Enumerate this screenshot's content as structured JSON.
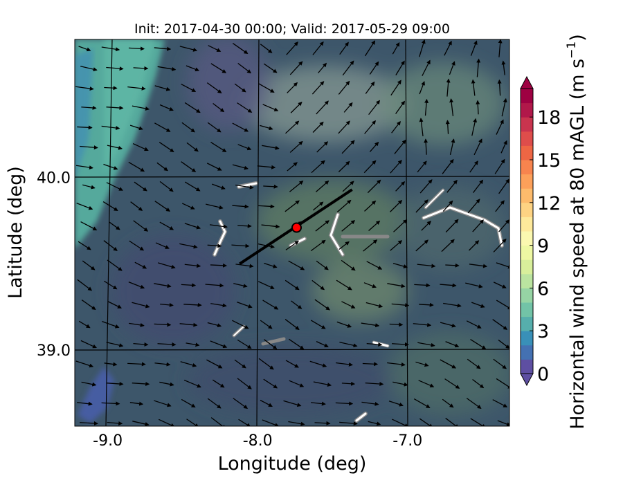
{
  "title": "Init: 2017-04-30 00:00; Valid: 2017-05-29 09:00",
  "xaxis": {
    "label": "Longitude (deg)",
    "ticks": [
      {
        "value": -9.0,
        "label": "-9.0"
      },
      {
        "value": -8.0,
        "label": "-8.0"
      },
      {
        "value": -7.0,
        "label": "-7.0"
      }
    ],
    "range": [
      -9.22,
      -6.32
    ]
  },
  "yaxis": {
    "label": "Latitude (deg)",
    "ticks": [
      {
        "value": 40.0,
        "label": "40.0"
      },
      {
        "value": 39.0,
        "label": "39.0"
      }
    ],
    "range": [
      38.56,
      40.8
    ]
  },
  "grid": true,
  "marker": {
    "lon": -7.74,
    "lat": 39.71,
    "color": "#ff0000"
  },
  "transect": {
    "start": [
      -8.12,
      39.5
    ],
    "end": [
      -7.37,
      39.93
    ]
  },
  "colorbar": {
    "label_main": "Horizontal wind speed at 80 mAGL (m s",
    "label_sup": "−1",
    "label_close": ")",
    "min": 0,
    "max": 20,
    "step": 1,
    "extend": "both",
    "ticks": [
      {
        "value": 0,
        "label": "0"
      },
      {
        "value": 3,
        "label": "3"
      },
      {
        "value": 6,
        "label": "6"
      },
      {
        "value": 9,
        "label": "9"
      },
      {
        "value": 12,
        "label": "12"
      },
      {
        "value": 15,
        "label": "15"
      },
      {
        "value": 18,
        "label": "18"
      }
    ],
    "colors": [
      "#5e4fa2",
      "#4471b2",
      "#3990b8",
      "#56aeac",
      "#72c3a7",
      "#96d4a4",
      "#bbe4a0",
      "#d8ef9b",
      "#eef8a3",
      "#fbf8b0",
      "#fee99b",
      "#fed383",
      "#fdbb6c",
      "#fca05a",
      "#f7844e",
      "#ee6644",
      "#de4d4b",
      "#c9344e",
      "#b1184a",
      "#9e0142"
    ],
    "under_color": "#5e4fa2",
    "over_color": "#9e0142"
  }
}
